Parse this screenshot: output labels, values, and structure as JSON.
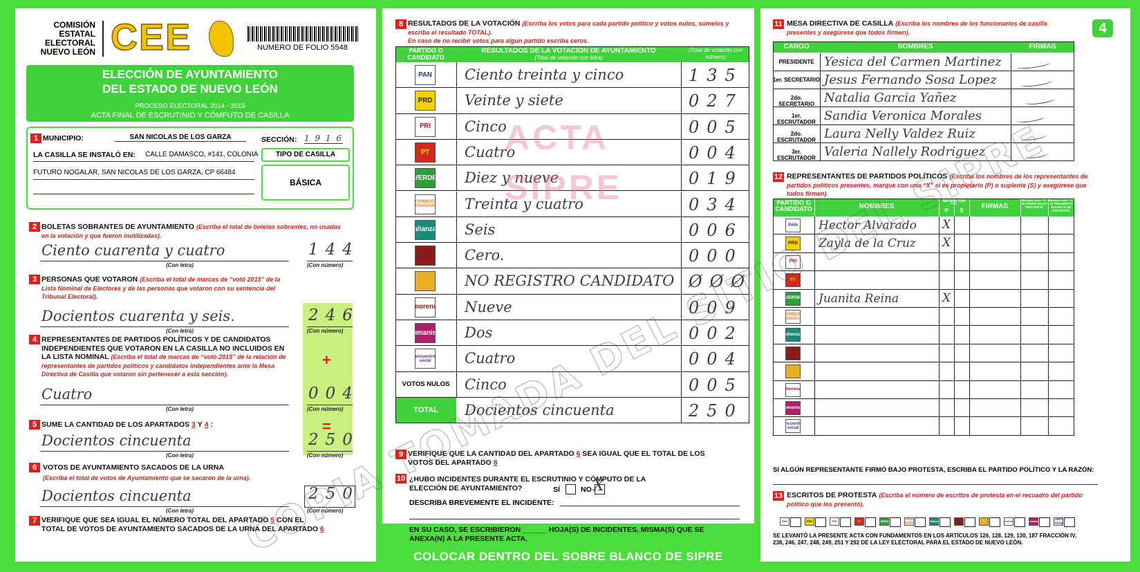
{
  "header": {
    "org": [
      "COMISIÓN",
      "ESTATAL",
      "ELECTORAL",
      "NUEVO LEÓN"
    ],
    "logo": "CEE",
    "folio": "NUMERO DE FOLIO 5548",
    "title_1": "ELECCIÓN DE AYUNTAMIENTO",
    "title_2": "DEL ESTADO DE NUEVO LEÓN",
    "process": "PROCESO ELECTORAL 2014 - 2015",
    "act": "ACTA FINAL DE ESCRUTINIO Y CÓMPUTO DE CASILLA"
  },
  "s1": {
    "num": "1",
    "municipio_label": "MUNICIPIO:",
    "municipio": "SAN NICOLAS DE LOS GARZA",
    "seccion_label": "SECCIÓN:",
    "seccion": "1 9 1 6",
    "casilla_label": "LA CASILLA SE INSTALÓ EN:",
    "address_1": "CALLE DAMASCO, #141, COLONIA",
    "address_2": "FUTURO NOGALAR, SAN NICOLAS DE LOS GARZA, CP 66484",
    "tipo_label": "TIPO DE CASILLA",
    "tipo": "BÁSICA"
  },
  "captions": {
    "letra": "(Con letra)",
    "numero": "(Con número)"
  },
  "s2": {
    "num": "2",
    "title": "BOLETAS SOBRANTES DE AYUNTAMIENTO",
    "note": "(Escriba el total de boletas sobrantes, no usadas en la votación y que fueron inutilizadas).",
    "letra": "Ciento cuarenta y cuatro",
    "numero": "144"
  },
  "s3": {
    "num": "3",
    "title": "PERSONAS QUE VOTARON",
    "note": "(Escriba el total de marcas de “votó 2015” de la Lista Nominal de Electores y de las personas que votaron con su sentencia del Tribunal Electoral).",
    "letra": "Docientos cuarenta y seis.",
    "numero": "246"
  },
  "s4": {
    "num": "4",
    "title": "REPRESENTANTES DE PARTIDOS POLÍTICOS Y DE CANDIDATOS INDEPENDIENTES QUE VOTARON EN LA CASILLA NO INCLUIDOS EN LA LISTA NOMINAL",
    "note": "(Escriba el total de marcas de “votó 2015” de la relación de representantes de partidos políticos y candidatos independientes ante la Mesa Directiva de Casilla que votaron sin pertenecer a esta sección).",
    "sign": "+",
    "letra": "Cuatro",
    "numero": "004"
  },
  "s5": {
    "num": "5",
    "title": "SUME LA CANTIDAD DE LOS APARTADOS",
    "ref_a": "3",
    "conj": "Y",
    "ref_b": "4",
    "colon": ":",
    "sign": "=",
    "letra": "Docientos cincuenta",
    "numero": "250"
  },
  "s6": {
    "num": "6",
    "title": "VOTOS DE AYUNTAMIENTO SACADOS DE LA URNA",
    "note": "(Escriba el total de votos de Ayuntamiento que se sacaron de la urna).",
    "letra": "Docientos cincuenta",
    "numero": "250"
  },
  "s7": {
    "num": "7",
    "text_1": "VERIFIQUE QUE SEA IGUAL EL NÚMERO TOTAL DEL APARTADO",
    "ref_a": "5",
    "text_2": "CON EL TOTAL DE VOTOS DE AYUNTAMIENTO SACADOS DE LA URNA DEL APARTADO",
    "ref_b": "6"
  },
  "parties": [
    {
      "logo": "PAN",
      "color": "#ffffff",
      "text_color": "#1a3c8f"
    },
    {
      "logo": "PRD",
      "color": "#f5d000",
      "text_color": "#222222"
    },
    {
      "logo": "PRI",
      "color": "#ffffff",
      "text_color": "#c8102e"
    },
    {
      "logo": "PT",
      "color": "#d9261c",
      "text_color": "#ffe000"
    },
    {
      "logo": "VERDE",
      "color": "#2e9e3a",
      "text_color": "#ffffff"
    },
    {
      "logo": "MOVIMIENTO CIUDADANO",
      "color": "#ffffff",
      "text_color": "#f47b20"
    },
    {
      "logo": "alianza",
      "color": "#1a8a7a",
      "text_color": "#ffffff"
    },
    {
      "color": "#8b1a1a",
      "text_color": "#ffffff"
    },
    {
      "color": "#e8b020",
      "text_color": "#222222"
    },
    {
      "logo": "morena",
      "color": "#ffffff",
      "text_color": "#8b1a1a"
    },
    {
      "logo": "Humanista",
      "color": "#b0206a",
      "text_color": "#ffffff"
    },
    {
      "logo": "encuentro social",
      "color": "#ffffff",
      "text_color": "#5b2d86"
    }
  ],
  "s8": {
    "num": "8",
    "title": "RESULTADOS DE LA VOTACIÓN",
    "note": "(Escriba los votos para cada partido político y votos nulos, súmelos y escriba el resultado TOTAL).",
    "note_2": "En caso de no recibir votos para algún partido escriba ceros.",
    "head_party": "PARTIDO O CANDIDATO",
    "head_letra": "RESULTADOS DE LA VOTACIÓN DE AYUNTAMIENTO",
    "head_letra_sub": "(Total de votación con letra)",
    "head_num": "(Total de votación con número)",
    "rows": [
      {
        "letra": "Ciento treinta y cinco",
        "numero": "135"
      },
      {
        "letra": "Veinte y siete",
        "numero": "027"
      },
      {
        "letra": "Cinco",
        "numero": "005"
      },
      {
        "letra": "Cuatro",
        "numero": "004"
      },
      {
        "letra": "Diez y nueve",
        "numero": "019"
      },
      {
        "letra": "Treinta y cuatro",
        "numero": "034"
      },
      {
        "letra": "Seis",
        "numero": "006"
      },
      {
        "letra": "Cero.",
        "numero": "000"
      },
      {
        "letra": "NO REGISTRO CANDIDATO",
        "numero": "ØØØ"
      },
      {
        "letra": "Nueve",
        "numero": "009"
      },
      {
        "letra": "Dos",
        "numero": "002"
      },
      {
        "letra": "Cuatro",
        "numero": "004"
      }
    ],
    "nulos_label": "VOTOS NULOS",
    "nulos_letra": "Cinco",
    "nulos_numero": "005",
    "total_label": "TOTAL",
    "total_letra": "Docientos cincuenta",
    "total_numero": "250",
    "watermark": [
      "ACTA",
      "SIPRE"
    ]
  },
  "s9": {
    "num": "9",
    "text_1": "VERIFIQUE QUE LA CANTIDAD DEL APARTADO",
    "ref_a": "6",
    "text_2": "SEA IGUAL QUE EL TOTAL DE LOS VOTOS DEL APARTADO",
    "ref_b": "8"
  },
  "s10": {
    "num": "10",
    "question": "¿HUBO INCIDENTES DURANTE EL ESCRUTINIO Y CÓMPUTO DE LA ELECCIÓN DE AYUNTAMIENTO?",
    "si": "SÍ",
    "no": "NO",
    "mark": "X",
    "describe": "DESCRIBA BREVEMENTE EL INCIDENTE:",
    "sheets": "EN SU CASO, SE ESCRIBIERON ______ HOJA(S) DE INCIDENTES, MISMA(S) QUE SE ANEXA(N) A LA PRESENTE ACTA."
  },
  "footer_band": "COLOCAR DENTRO DEL SOBRE BLANCO DE SIPRE",
  "s11": {
    "num": "11",
    "title": "MESA DIRECTIVA DE CASILLA",
    "note": "(Escriba los nombres de los funcionarios de casilla presentes y asegúrese que todos firmen).",
    "page": "4",
    "heads": [
      "CARGO",
      "NOMBRES",
      "FIRMAS"
    ],
    "rows": [
      {
        "cargo": "PRESIDENTE",
        "nombre": "Yesica del Carmen Martinez"
      },
      {
        "cargo": "1er. SECRETARIO",
        "nombre": "Jesus Fernando Sosa Lopez"
      },
      {
        "cargo": "2do. SECRETARIO",
        "nombre": "Natalia Garcia Yañez"
      },
      {
        "cargo": "1er. ESCRUTADOR",
        "nombre": "Sandia Veronica Morales"
      },
      {
        "cargo": "2do. ESCRUTADOR",
        "nombre": "Laura Nelly Valdez Ruiz"
      },
      {
        "cargo": "3er. ESCRUTADOR",
        "nombre": "Valeria Nallely Rodriguez"
      }
    ]
  },
  "s12": {
    "num": "12",
    "title": "REPRESENTANTES DE PARTIDOS POLÍTICOS",
    "note": "(Escriba los nombres de los representantes de partidos políticos presentes, marque con una “X” si es propietario (P) o suplente (S) y asegúrese que todos firmen).",
    "head_party": "PARTIDO O CANDIDATO",
    "head_nombres": "NOMBRES",
    "head_mark": "Marque con “X”",
    "head_p": "P",
    "head_s": "S",
    "head_firmas": "FIRMAS",
    "head_protesta": "Marque con “X” SI FIRMÓ BAJO PROTESTA",
    "head_escrito": "Marque con “X” SI PRESENTÓ ESCRITO DE PROTESTA",
    "rows": [
      {
        "nombre": "Hector Alvarado",
        "p": "X"
      },
      {
        "nombre": "Zayla de la Cruz",
        "p": "X"
      },
      {},
      {},
      {
        "nombre": "Juanita Reina",
        "p": "X"
      },
      {},
      {},
      {},
      {},
      {},
      {},
      {}
    ],
    "protest": "SI ALGÚN REPRESENTANTE FIRMÓ BAJO PROTESTA, ESCRIBA EL PARTIDO POLÍTICO Y LA RAZÓN:"
  },
  "s13": {
    "num": "13",
    "title": "ESCRITOS DE PROTESTA",
    "note": "(Escriba el número de escritos de protesta en el recuadro del partido político que los presentó).",
    "legal": "SE LEVANTÓ LA PRESENTE ACTA CON FUNDAMENTOS EN LOS ARTÍCULOS 126, 128, 129, 130, 187 FRACCIÓN IV, 238, 246, 247, 248, 249, 251 Y 292 DE LA LEY ELECTORAL PARA EL ESTADO DE NUEVO LEÓN."
  },
  "watermark": "COPIA TOMADA DEL SITIO DEL SIPRE"
}
